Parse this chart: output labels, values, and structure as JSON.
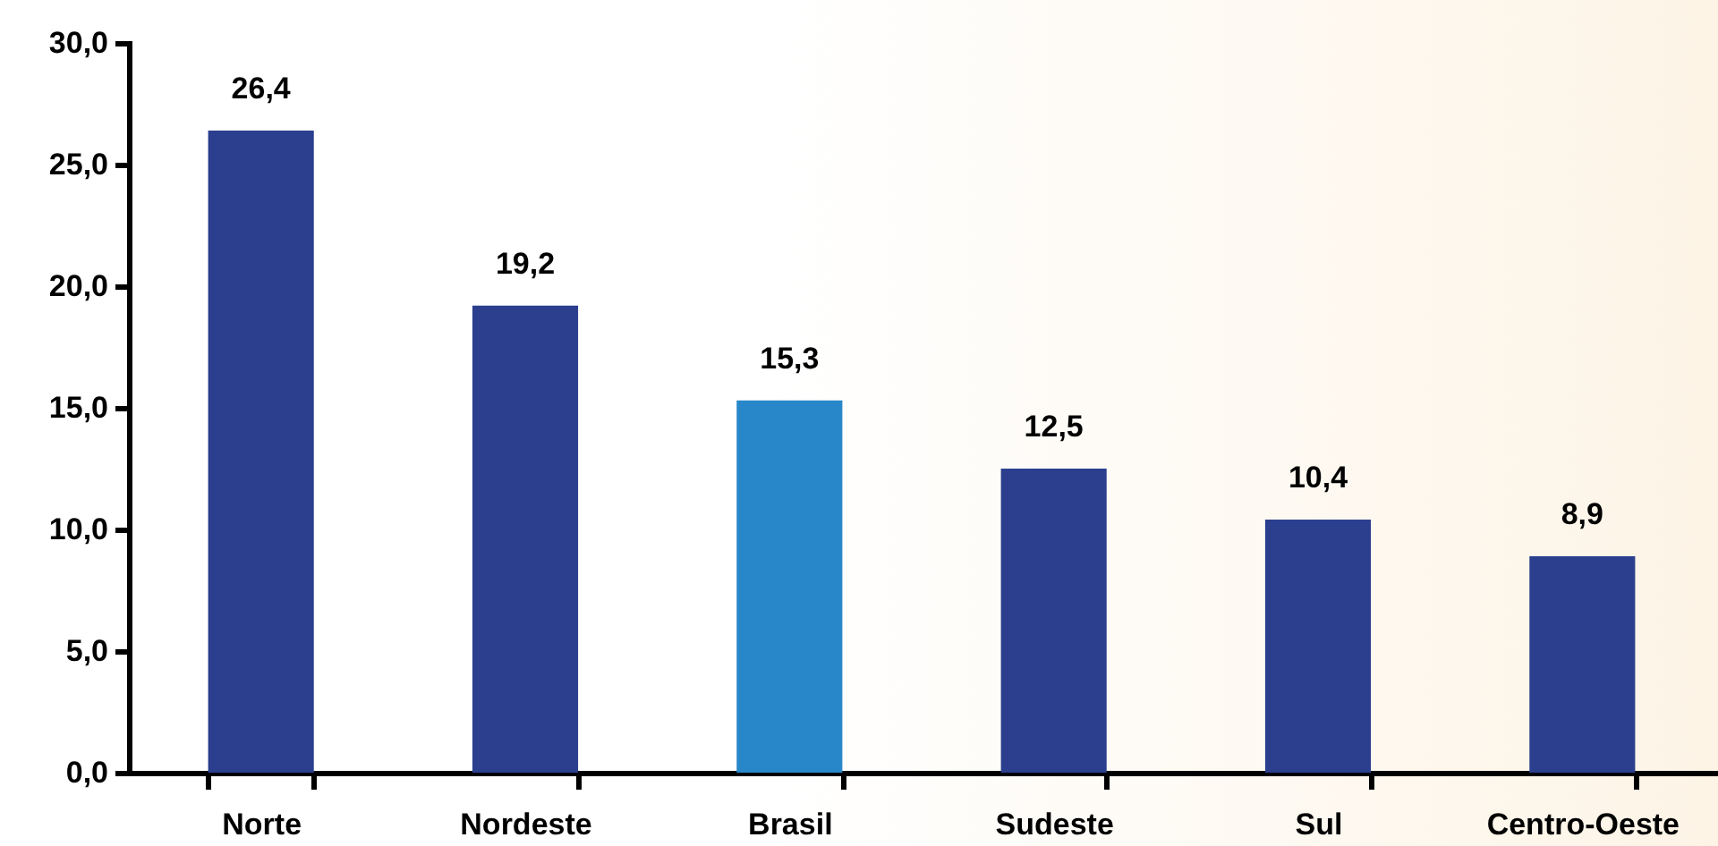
{
  "chart_data": {
    "type": "bar",
    "categories": [
      "Norte",
      "Nordeste",
      "Brasil",
      "Sudeste",
      "Sul",
      "Centro-Oeste"
    ],
    "values": [
      26.4,
      19.2,
      15.3,
      12.5,
      10.4,
      8.9
    ],
    "value_labels": [
      "26,4",
      "19,2",
      "15,3",
      "12,5",
      "10,4",
      "8,9"
    ],
    "colors": [
      "#2b3f8e",
      "#2b3f8e",
      "#2887c8",
      "#2b3f8e",
      "#2b3f8e",
      "#2b3f8e"
    ],
    "ylim": [
      0,
      30
    ],
    "yticks": [
      {
        "value": 0,
        "label": "0,0"
      },
      {
        "value": 5,
        "label": "5,0"
      },
      {
        "value": 10,
        "label": "10,0"
      },
      {
        "value": 15,
        "label": "15,0"
      },
      {
        "value": 20,
        "label": "20,0"
      },
      {
        "value": 25,
        "label": "25,0"
      },
      {
        "value": 30,
        "label": "30,0"
      }
    ]
  }
}
